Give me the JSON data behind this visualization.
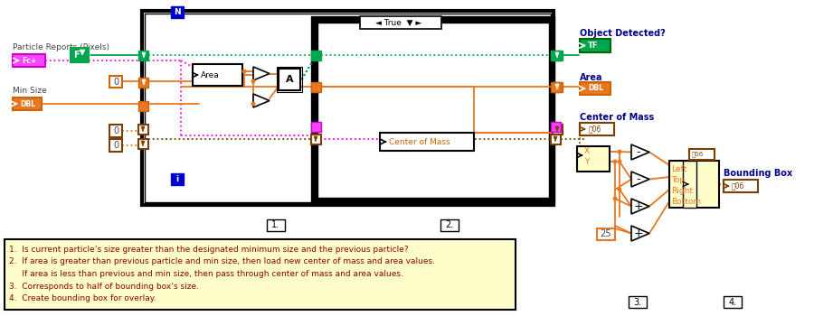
{
  "bg_color": "#ffffff",
  "note_text_color": "#8B0000",
  "note_lines": [
    "1.  Is current particle’s size greater than the designated minimum size and the previous particle?",
    "2.  If area is greater than previous particle and min size, then load new center of mass and area values.",
    "     If area is less than previous and min size, then pass through center of mass and area values.",
    "3.  Corresponds to half of bounding box’s size.",
    "4.  Create bounding box for overlay."
  ],
  "orange": "#E87722",
  "dark_orange": "#CC6600",
  "brown": "#7B3F00",
  "green": "#00A550",
  "magenta": "#FF00FF",
  "light_yellow": "#FFFFCC",
  "dark_gray": "#444444",
  "blue_label": "#003087",
  "blue_box": "#0000CC",
  "label_color": "#00008B"
}
